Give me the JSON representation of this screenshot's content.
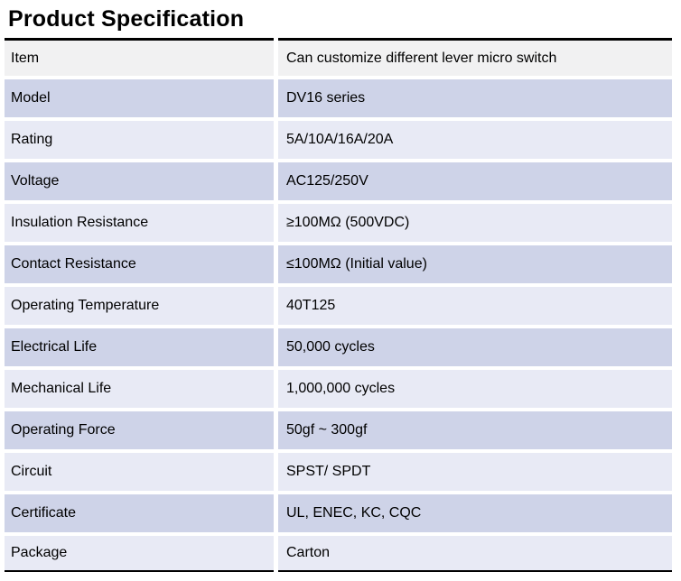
{
  "page": {
    "title": "Product Specification"
  },
  "colors": {
    "row_gray": "#f1f1f2",
    "row_dark_lavender": "#ced3e8",
    "row_light_lavender": "#e8eaf5",
    "border_black": "#000000",
    "background": "#ffffff"
  },
  "table": {
    "rows": [
      {
        "label": "Item",
        "value": "Can customize different lever micro switch"
      },
      {
        "label": "Model",
        "value": "DV16 series"
      },
      {
        "label": "Rating",
        "value": "5A/10A/16A/20A"
      },
      {
        "label": "Voltage",
        "value": "AC125/250V"
      },
      {
        "label": "Insulation Resistance",
        "value": "≥100MΩ (500VDC)"
      },
      {
        "label": "Contact Resistance",
        "value": "≤100MΩ (Initial value)"
      },
      {
        "label": "Operating Temperature",
        "value": "40T125"
      },
      {
        "label": "Electrical Life",
        "value": "50,000 cycles"
      },
      {
        "label": "Mechanical Life",
        "value": "1,000,000 cycles"
      },
      {
        "label": "Operating Force",
        "value": "50gf ~ 300gf"
      },
      {
        "label": "Circuit",
        "value": "SPST/ SPDT"
      },
      {
        "label": "Certificate",
        "value": "UL, ENEC, KC, CQC"
      },
      {
        "label": "Package",
        "value": "Carton"
      }
    ]
  }
}
